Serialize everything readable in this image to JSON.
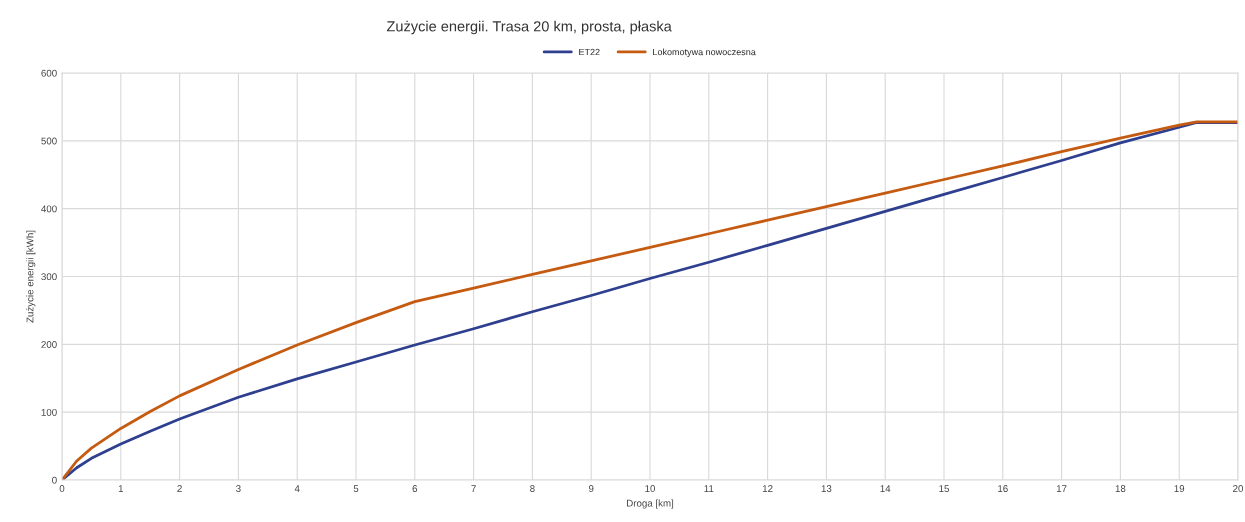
{
  "chart_data": {
    "type": "line",
    "title": "Zużycie energii. Trasa 20 km, prosta, płaska",
    "xlabel": "Droga [km]",
    "ylabel": "Zużycie energii [kWh]",
    "x": [
      0,
      0.25,
      0.5,
      1,
      1.5,
      2,
      3,
      4,
      5,
      6,
      7,
      8,
      9,
      10,
      11,
      12,
      13,
      14,
      15,
      16,
      17,
      18,
      19,
      19.3,
      20
    ],
    "series": [
      {
        "name": "ET22",
        "color": "#2e3f8f",
        "values": [
          0,
          18,
          32,
          53,
          72,
          90,
          122,
          149,
          174,
          199,
          223,
          248,
          272,
          297,
          321,
          346,
          371,
          396,
          421,
          446,
          471,
          497,
          520,
          527,
          527
        ]
      },
      {
        "name": "Lokomotywa nowoczesna",
        "color": "#c55a11",
        "values": [
          0,
          28,
          47,
          76,
          101,
          124,
          163,
          199,
          232,
          263,
          283,
          303,
          323,
          343,
          363,
          383,
          403,
          423,
          443,
          463,
          484,
          504,
          523,
          528,
          528
        ]
      }
    ],
    "xlim": [
      0,
      20
    ],
    "xticks": [
      0,
      1,
      2,
      3,
      4,
      5,
      6,
      7,
      8,
      9,
      10,
      11,
      12,
      13,
      14,
      15,
      16,
      17,
      18,
      19,
      20
    ],
    "ylim": [
      0,
      600
    ],
    "yticks": [
      0,
      100,
      200,
      300,
      400,
      500,
      600
    ],
    "grid": true,
    "legend": "top",
    "marker": "none",
    "line_style": "solid"
  }
}
